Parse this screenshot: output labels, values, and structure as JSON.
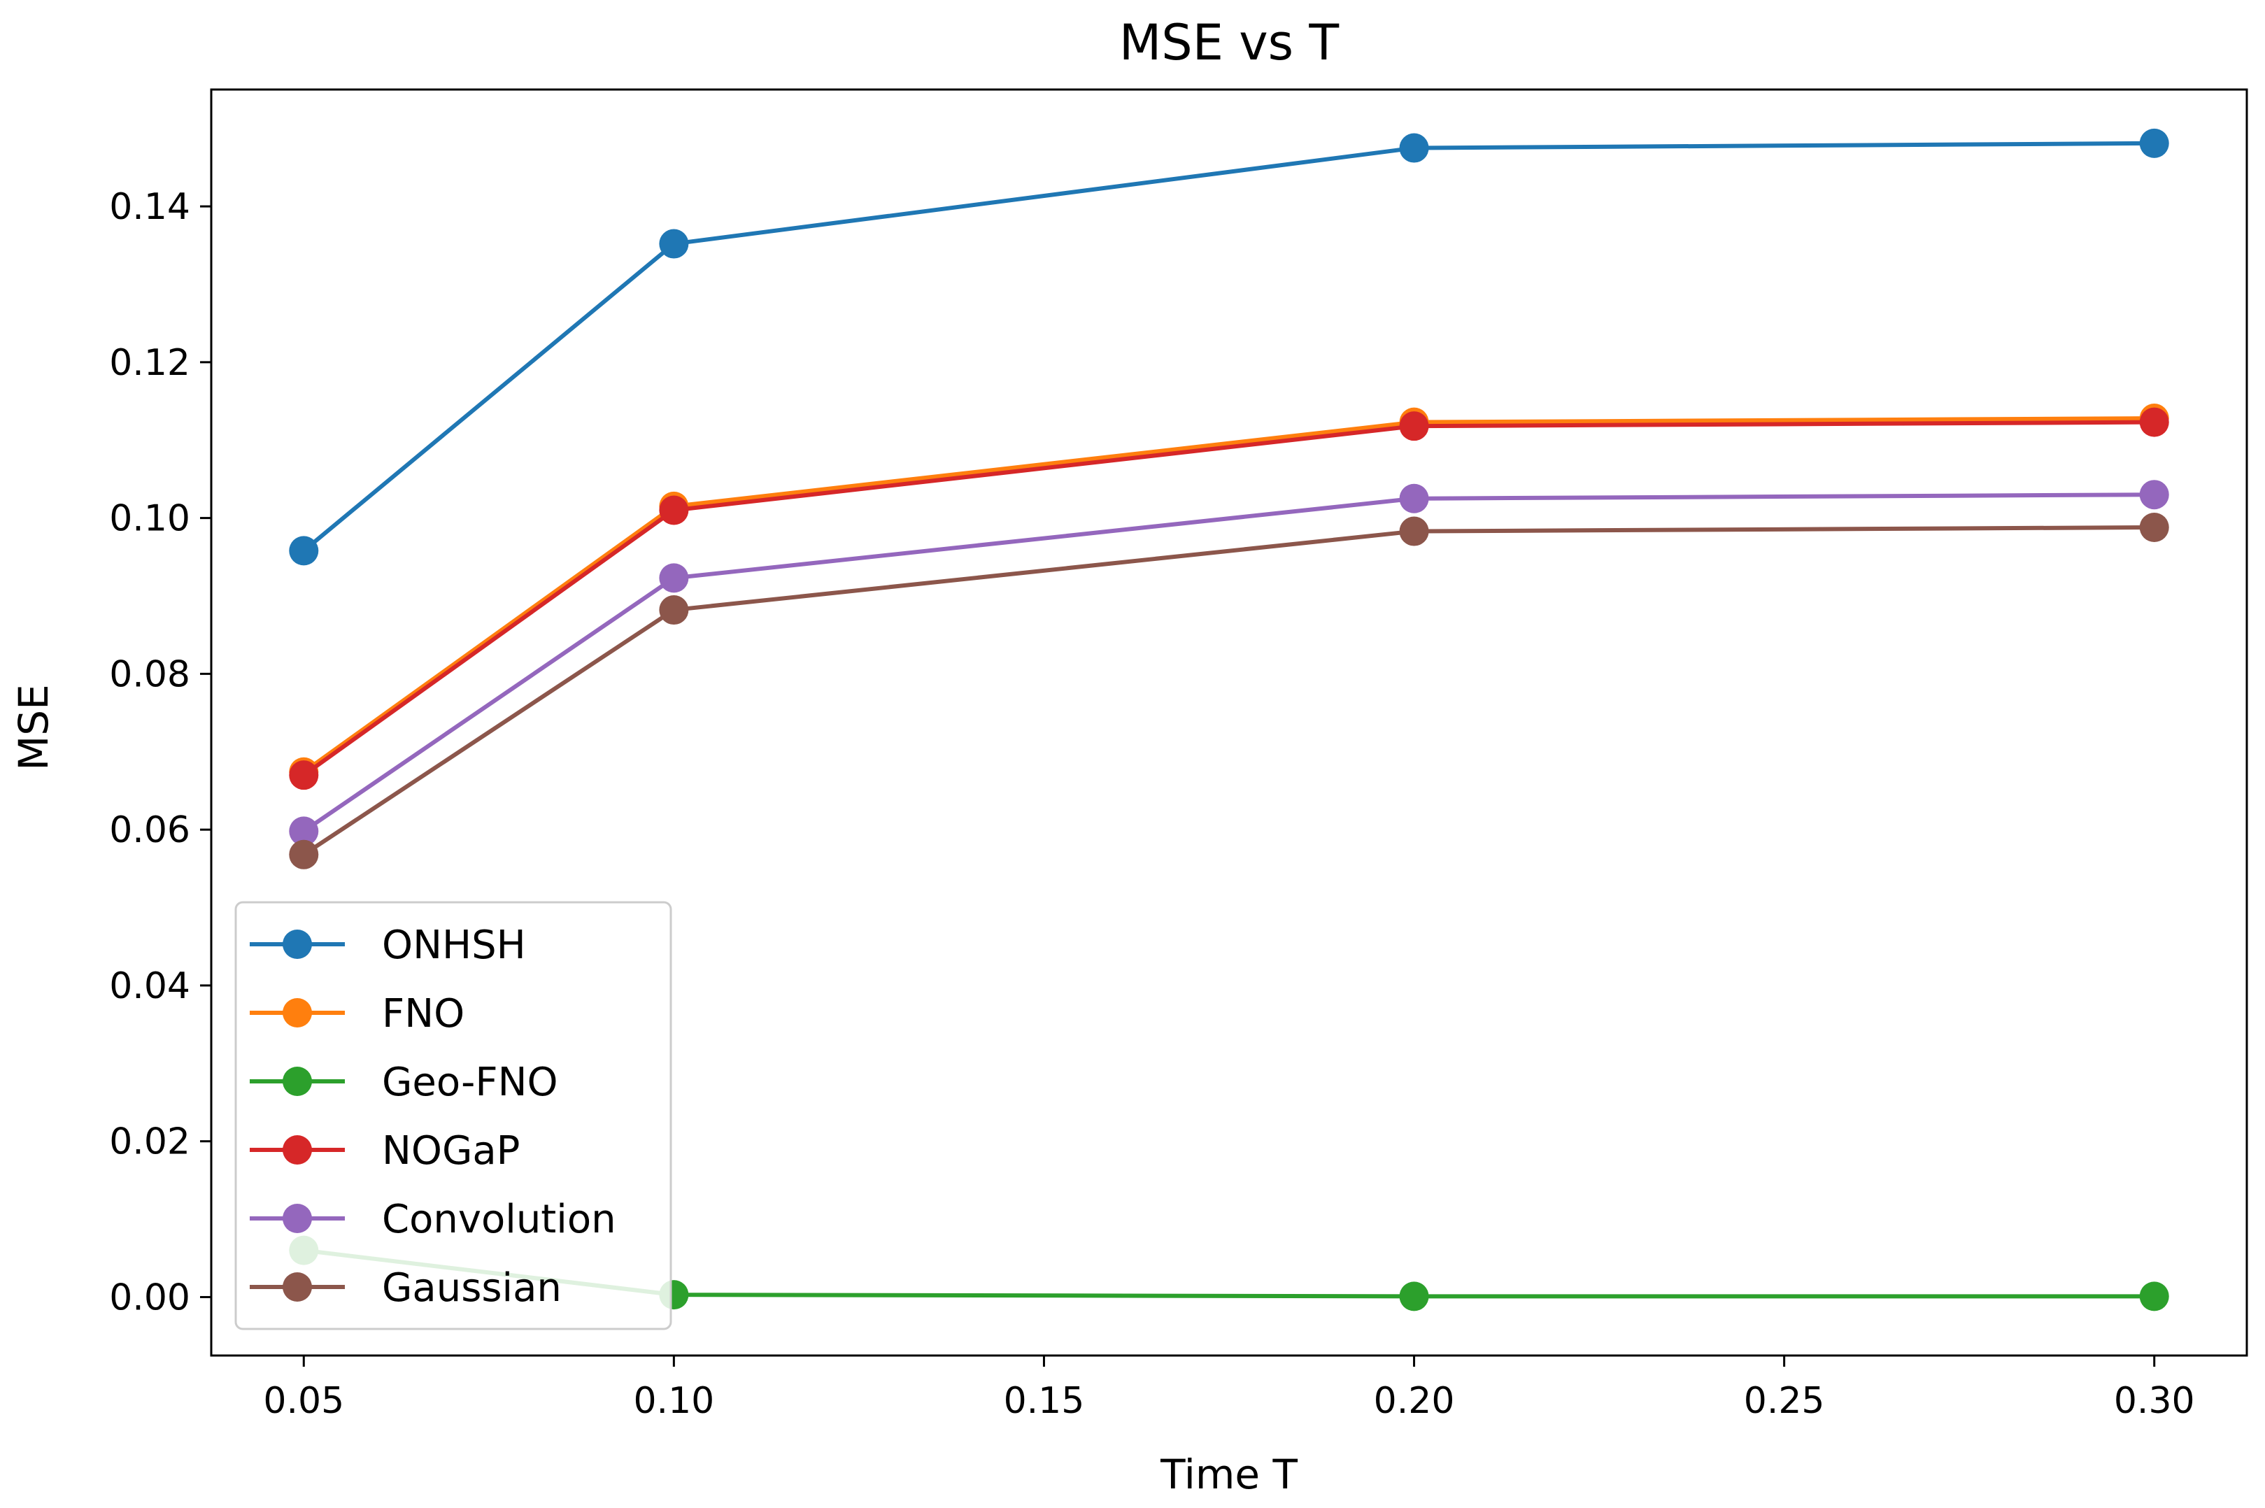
{
  "chart_data": {
    "type": "line",
    "title": "MSE vs T",
    "xlabel": "Time T",
    "ylabel": "MSE",
    "x": [
      0.05,
      0.1,
      0.2,
      0.3
    ],
    "xlim": [
      0.0375,
      0.3125
    ],
    "ylim": [
      -0.0075,
      0.155
    ],
    "xticks": [
      0.05,
      0.1,
      0.15,
      0.2,
      0.25,
      0.3
    ],
    "xtick_labels": [
      "0.05",
      "0.10",
      "0.15",
      "0.20",
      "0.25",
      "0.30"
    ],
    "yticks": [
      0.0,
      0.02,
      0.04,
      0.06,
      0.08,
      0.1,
      0.12,
      0.14
    ],
    "ytick_labels": [
      "0.00",
      "0.02",
      "0.04",
      "0.06",
      "0.08",
      "0.10",
      "0.12",
      "0.14"
    ],
    "grid": false,
    "legend_position": "lower-left",
    "series": [
      {
        "name": "ONHSH",
        "color": "#1f77b4",
        "values": [
          0.0958,
          0.1352,
          0.1475,
          0.1481
        ]
      },
      {
        "name": "FNO",
        "color": "#ff7f0e",
        "values": [
          0.0674,
          0.1015,
          0.1123,
          0.1128
        ]
      },
      {
        "name": "Geo-FNO",
        "color": "#2ca02c",
        "values": [
          0.006,
          0.0003,
          0.0001,
          0.0001
        ]
      },
      {
        "name": "NOGaP",
        "color": "#d62728",
        "values": [
          0.067,
          0.101,
          0.1118,
          0.1123
        ]
      },
      {
        "name": "Convolution",
        "color": "#9467bd",
        "values": [
          0.0598,
          0.0923,
          0.1025,
          0.103
        ]
      },
      {
        "name": "Gaussian",
        "color": "#8c564b",
        "values": [
          0.0568,
          0.0882,
          0.0983,
          0.0988
        ]
      }
    ]
  }
}
